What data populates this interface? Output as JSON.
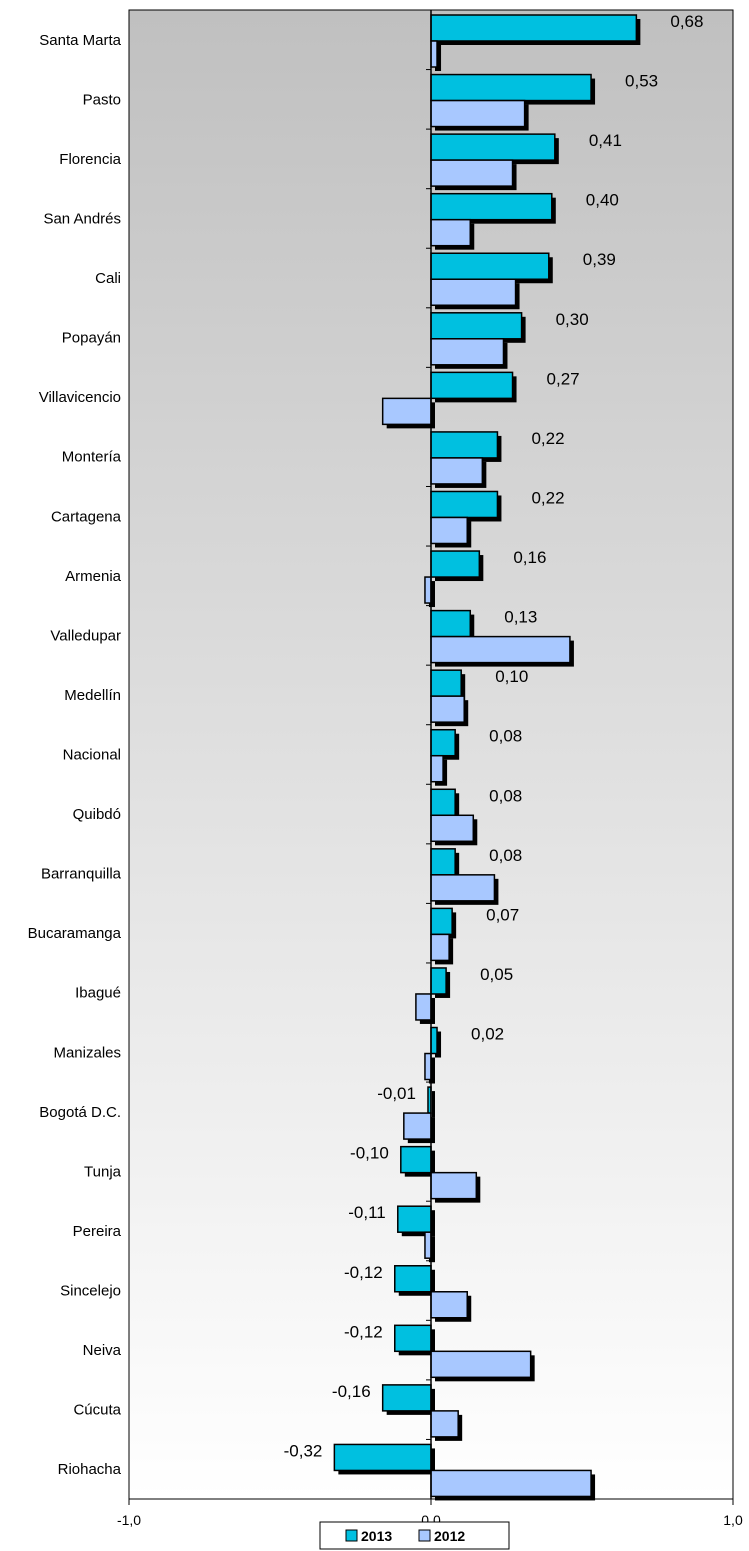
{
  "chart_data": {
    "type": "bar",
    "orientation": "horizontal",
    "categories": [
      "Santa Marta",
      "Pasto",
      "Florencia",
      "San Andrés",
      "Cali",
      "Popayán",
      "Villavicencio",
      "Montería",
      "Cartagena",
      "Armenia",
      "Valledupar",
      "Medellín",
      "Nacional",
      "Quibdó",
      "Barranquilla",
      "Bucaramanga",
      "Ibagué",
      "Manizales",
      "Bogotá D.C.",
      "Tunja",
      "Pereira",
      "Sincelejo",
      "Neiva",
      "Cúcuta",
      "Riohacha"
    ],
    "series": [
      {
        "name": "2013",
        "color": "#00c0e0",
        "values": [
          0.68,
          0.53,
          0.41,
          0.4,
          0.39,
          0.3,
          0.27,
          0.22,
          0.22,
          0.16,
          0.13,
          0.1,
          0.08,
          0.08,
          0.08,
          0.07,
          0.05,
          0.02,
          -0.01,
          -0.1,
          -0.11,
          -0.12,
          -0.12,
          -0.16,
          -0.32
        ],
        "labels": [
          "0,68",
          "0,53",
          "0,41",
          "0,40",
          "0,39",
          "0,30",
          "0,27",
          "0,22",
          "0,22",
          "0,16",
          "0,13",
          "0,10",
          "0,08",
          "0,08",
          "0,08",
          "0,07",
          "0,05",
          "0,02",
          "-0,01",
          "-0,10",
          "-0,11",
          "-0,12",
          "-0,12",
          "-0,16",
          "-0,32"
        ]
      },
      {
        "name": "2012",
        "color": "#a8c8ff",
        "values": [
          0.02,
          0.31,
          0.27,
          0.13,
          0.28,
          0.24,
          -0.16,
          0.17,
          0.12,
          -0.02,
          0.46,
          0.11,
          0.04,
          0.14,
          0.21,
          0.06,
          -0.05,
          -0.02,
          -0.09,
          0.15,
          -0.02,
          0.12,
          0.33,
          0.09,
          0.53
        ]
      }
    ],
    "x_ticks": [
      "-1,0",
      "0,0",
      "1,0"
    ],
    "xlim": [
      -1.0,
      1.0
    ],
    "legend_position": "bottom",
    "grid": false
  }
}
